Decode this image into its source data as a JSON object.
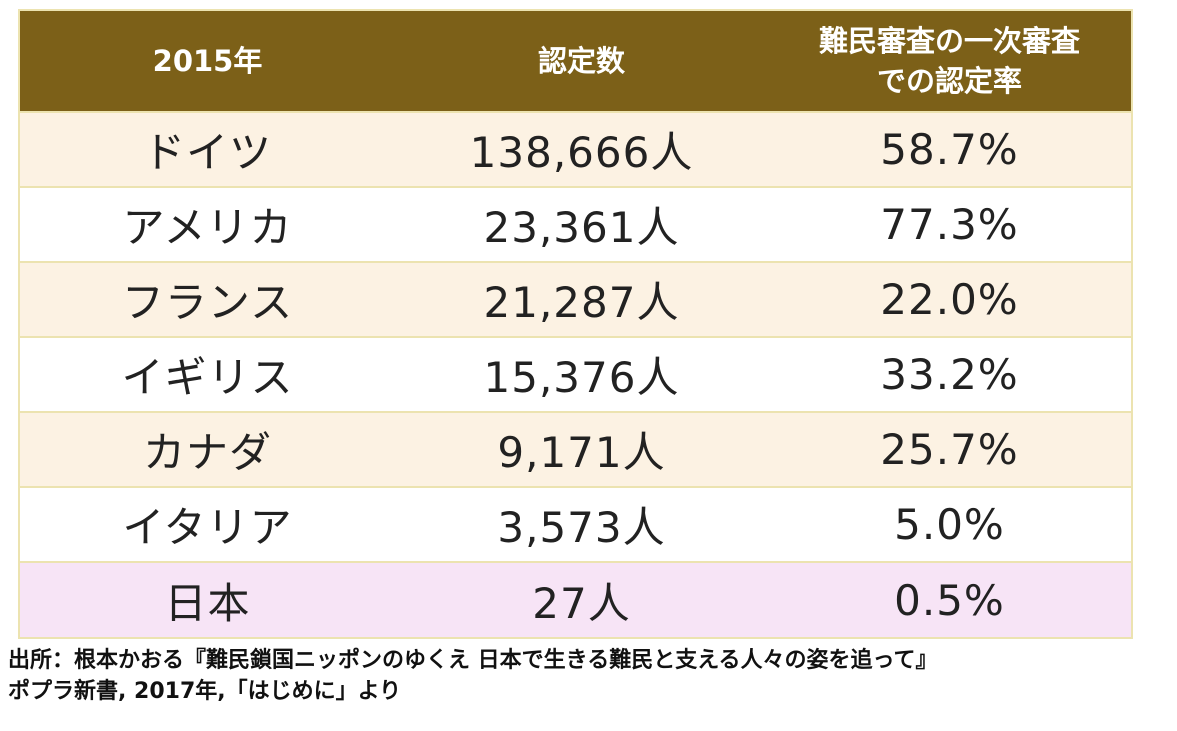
{
  "table": {
    "headers": {
      "year": "2015年",
      "count": "認定数",
      "rate_line1": "難民審査の一次審査",
      "rate_line2": "での認定率"
    },
    "rows": [
      {
        "country": "ドイツ",
        "count": "138,666人",
        "rate": "58.7%"
      },
      {
        "country": "アメリカ",
        "count": "23,361人",
        "rate": "77.3%"
      },
      {
        "country": "フランス",
        "count": "21,287人",
        "rate": "22.0%"
      },
      {
        "country": "イギリス",
        "count": "15,376人",
        "rate": "33.2%"
      },
      {
        "country": "カナダ",
        "count": "9,171人",
        "rate": "25.7%"
      },
      {
        "country": "イタリア",
        "count": "3,573人",
        "rate": "5.0%"
      },
      {
        "country": "日本",
        "count": "27人",
        "rate": "0.5%"
      }
    ]
  },
  "source": {
    "line1": "出所：根本かおる『難民鎖国ニッポンのゆくえ 日本で生きる難民と支える人々の姿を追って』",
    "line2": "ポプラ新書, 2017年,「はじめに」より"
  },
  "colors": {
    "header_bg": "#7c6018",
    "row_alt_bg": "#fcf2e3",
    "row_japan_bg": "#f7e4f6",
    "border": "#ece3b0"
  }
}
